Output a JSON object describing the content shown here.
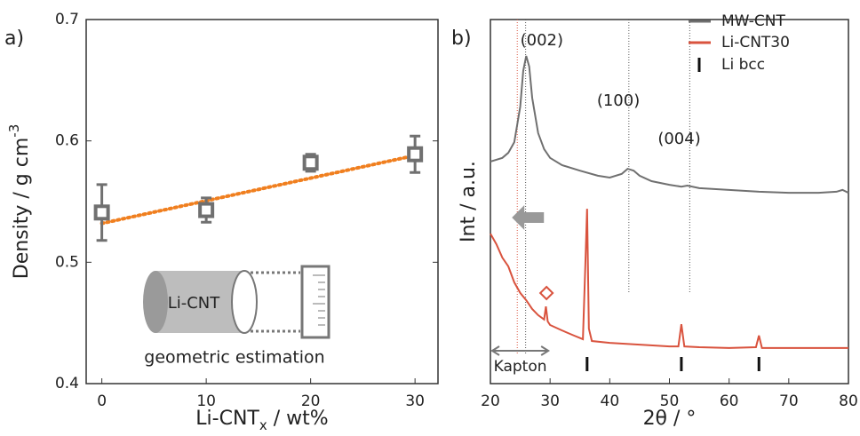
{
  "chart_data": [
    {
      "type": "scatter",
      "panel": "a)",
      "ylabel": [
        "Density / g cm",
        "-3"
      ],
      "xlabel": [
        "Li-CNT",
        "x",
        " / wt%"
      ],
      "xlim": [
        -1.5,
        32.2
      ],
      "ylim": [
        0.4,
        0.7
      ],
      "xticks": [
        0,
        10,
        20,
        30
      ],
      "yticks": [
        0.4,
        0.5,
        0.6,
        0.7
      ],
      "series": [
        {
          "color": "#707070",
          "x": [
            0,
            10,
            20,
            30
          ],
          "values": [
            0.541,
            0.543,
            0.582,
            0.589
          ],
          "errors": [
            0.023,
            0.01,
            0.007,
            0.015
          ]
        }
      ],
      "fit": {
        "color": "#f07f1f",
        "x": [
          0,
          30
        ],
        "values": [
          0.532,
          0.588
        ]
      },
      "inset": {
        "label": "Li-CNT",
        "caption": "geometric estimation"
      }
    },
    {
      "type": "line",
      "panel": "b)",
      "ylabel": "Int / a.u.",
      "xlabel": "2θ / °",
      "xlim": [
        20,
        80
      ],
      "ylim": [
        0,
        100
      ],
      "xticks": [
        20,
        30,
        40,
        50,
        60,
        70,
        80
      ],
      "series": [
        {
          "name": "MW-CNT",
          "color": "#707070",
          "x": [
            20,
            22,
            23,
            24,
            25,
            25.5,
            26,
            26.5,
            27,
            28,
            29,
            30,
            32,
            35,
            38,
            40,
            42,
            43,
            44,
            45,
            47,
            50,
            52,
            53,
            55,
            60,
            65,
            70,
            75,
            78,
            79,
            80
          ],
          "values": [
            61.0,
            62.0,
            63.4,
            66.3,
            76.1,
            85.9,
            90.0,
            87.1,
            78.5,
            68.8,
            64.4,
            62.0,
            60.0,
            58.5,
            57.1,
            56.6,
            57.6,
            59.0,
            58.5,
            57.1,
            55.6,
            54.6,
            54.1,
            54.4,
            53.7,
            53.2,
            52.7,
            52.4,
            52.4,
            52.7,
            53.2,
            52.4
          ]
        },
        {
          "name": "Li-CNT30",
          "color": "#d9533e",
          "x": [
            20,
            21,
            22,
            23,
            24,
            25,
            26,
            27,
            28,
            29,
            29.3,
            29.6,
            30,
            32,
            34,
            35.5,
            35.9,
            36.2,
            36.5,
            37,
            40,
            45,
            50,
            51.5,
            52,
            52.5,
            55,
            60,
            64.5,
            65,
            65.5,
            70,
            75,
            80
          ],
          "values": [
            41.2,
            38.3,
            34.6,
            32.2,
            27.8,
            24.9,
            22.9,
            20.5,
            18.8,
            17.6,
            21.2,
            17.1,
            16.1,
            14.6,
            13.2,
            12.2,
            32.2,
            48.0,
            15.1,
            11.7,
            11.2,
            10.7,
            10.2,
            10.2,
            16.3,
            10.2,
            10.0,
            9.8,
            10.0,
            13.2,
            9.8,
            9.8,
            9.8,
            9.8
          ]
        }
      ],
      "reference": {
        "name": "Li bcc",
        "color": "#111111",
        "x": [
          36.2,
          52.0,
          65.0
        ]
      },
      "peaks": [
        {
          "label": "(002)",
          "x": 25.9
        },
        {
          "label": "(100)",
          "x": 43.2
        },
        {
          "label": "(004)",
          "x": 53.4
        }
      ],
      "shift_line_x": 24.5,
      "kapton": {
        "label": "Kapton",
        "x": [
          20,
          30
        ]
      },
      "diamond_x": 29.4
    }
  ]
}
